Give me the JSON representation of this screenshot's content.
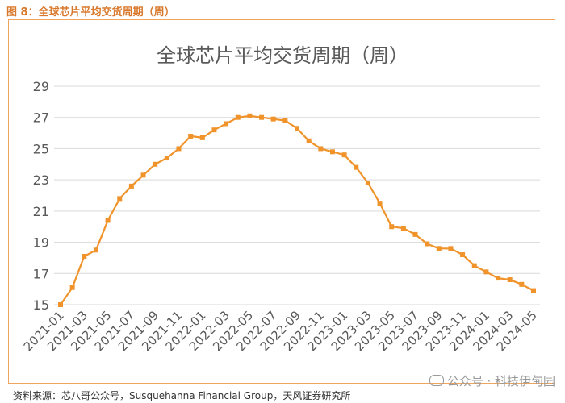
{
  "figure_caption": "图 8：全球芯片平均交货周期（周）",
  "source_note": "资料来源：芯八哥公众号，Susquehanna Financial Group，天风证券研究所",
  "watermark": "公众号 · 科技伊甸园",
  "colors": {
    "series": "#f0932b",
    "frame": "#f0a45c",
    "grid": "#d9d9d9",
    "caption": "#d9782b"
  },
  "chart_data": {
    "type": "line",
    "title": "全球芯片平均交货周期（周）",
    "xlabel": "",
    "ylabel": "",
    "ylim": [
      15,
      29
    ],
    "yticks": [
      15,
      17,
      19,
      21,
      23,
      25,
      27,
      29
    ],
    "grid": true,
    "legend": "none",
    "marker": "square",
    "x": [
      "2021-01",
      "2021-02",
      "2021-03",
      "2021-04",
      "2021-05",
      "2021-06",
      "2021-07",
      "2021-08",
      "2021-09",
      "2021-10",
      "2021-11",
      "2021-12",
      "2022-01",
      "2022-02",
      "2022-03",
      "2022-04",
      "2022-05",
      "2022-06",
      "2022-07",
      "2022-08",
      "2022-09",
      "2022-10",
      "2022-11",
      "2022-12",
      "2023-01",
      "2023-02",
      "2023-03",
      "2023-04",
      "2023-05",
      "2023-06",
      "2023-07",
      "2023-08",
      "2023-09",
      "2023-10",
      "2023-11",
      "2023-12",
      "2024-01",
      "2024-02",
      "2024-03",
      "2024-04",
      "2024-05"
    ],
    "xtick_labels": [
      "2021-01",
      "2021-03",
      "2021-05",
      "2021-07",
      "2021-09",
      "2021-11",
      "2022-01",
      "2022-03",
      "2022-05",
      "2022-07",
      "2022-09",
      "2022-11",
      "2023-01",
      "2023-03",
      "2023-05",
      "2023-07",
      "2023-09",
      "2023-11",
      "2024-01",
      "2024-03",
      "2024-05"
    ],
    "series": [
      {
        "values": [
          15.0,
          16.1,
          18.1,
          18.5,
          20.4,
          21.8,
          22.6,
          23.3,
          24.0,
          24.4,
          25.0,
          25.8,
          25.7,
          26.2,
          26.6,
          27.0,
          27.1,
          27.0,
          26.9,
          26.8,
          26.3,
          25.5,
          25.0,
          24.8,
          24.6,
          23.8,
          22.8,
          21.5,
          20.0,
          19.9,
          19.5,
          18.9,
          18.6,
          18.6,
          18.2,
          17.5,
          17.1,
          16.7,
          16.6,
          16.3,
          15.9
        ]
      }
    ]
  }
}
